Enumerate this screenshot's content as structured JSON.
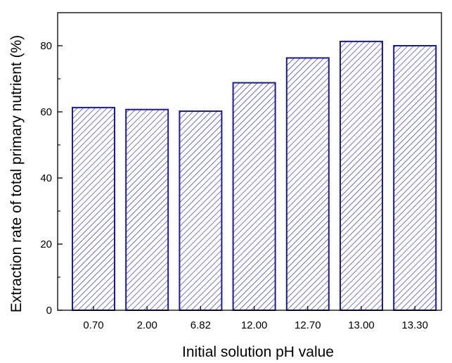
{
  "chart_data": {
    "type": "bar",
    "title": "",
    "xlabel": "Initial solution pH value",
    "ylabel": "Extraction rate of total primary nutrient (%)",
    "categories": [
      "0.70",
      "2.00",
      "6.82",
      "12.00",
      "12.70",
      "13.00",
      "13.30"
    ],
    "values": [
      61.3,
      60.7,
      60.2,
      68.8,
      76.3,
      81.3,
      80.0
    ],
    "ylim": [
      0,
      90
    ],
    "yticks": [
      0,
      20,
      40,
      60,
      80
    ],
    "grid": false,
    "bar_fill": "diagonal-hatch",
    "colors": {
      "bar_edge": "#1a1aa0",
      "hatch": "#1a1aa0",
      "axis": "#000000"
    }
  }
}
